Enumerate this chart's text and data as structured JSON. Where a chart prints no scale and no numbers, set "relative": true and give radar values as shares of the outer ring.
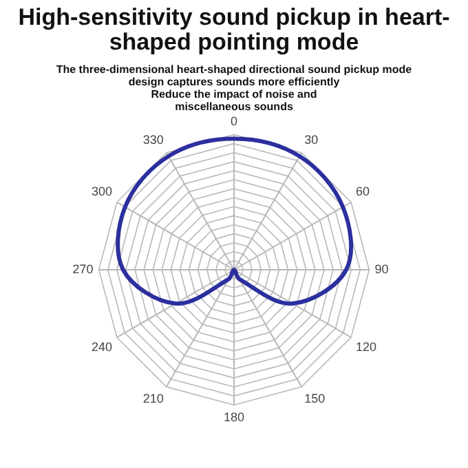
{
  "chart_data": {
    "type": "radar",
    "title": "High-sensitivity sound pickup in heart-shaped pointing mode",
    "subtitle": "The three-dimensional heart-shaped directional sound pickup mode\ndesign captures sounds more efficiently\nReduce the impact of noise and\nmiscellaneous sounds",
    "relative": true,
    "grid": true,
    "legend": false,
    "marker": "none",
    "line_style": "solid",
    "categories": [
      "0",
      "30",
      "60",
      "90",
      "120",
      "150",
      "180",
      "210",
      "240",
      "270",
      "300",
      "330"
    ],
    "series": [
      {
        "color": "#2b2f9e",
        "values": [
          0.97,
          0.97,
          0.93,
          0.83,
          0.5,
          0.08,
          0,
          0.08,
          0.5,
          0.82,
          0.93,
          0.97
        ]
      }
    ]
  }
}
